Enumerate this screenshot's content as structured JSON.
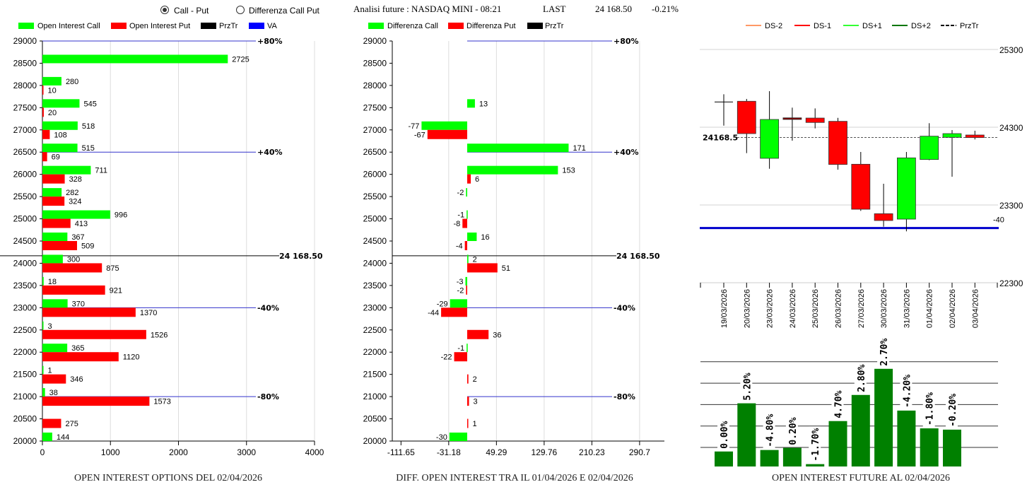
{
  "header": {
    "radio_options": [
      {
        "label": "Call - Put",
        "selected": true
      },
      {
        "label": "Differenza Call Put",
        "selected": false
      }
    ],
    "analysis_label": "Analisi future : NASDAQ MINI - 08:21",
    "last_label": "LAST",
    "last_price": "24 168.50",
    "last_change": "-0.21%"
  },
  "colors": {
    "call": "#00ff00",
    "put": "#ff0000",
    "przTr": "#000000",
    "va": "#0000ff",
    "future_bar": "#008000",
    "ds_minus2": "#ff9966",
    "ds_minus1": "#ff0000",
    "ds_plus1": "#33ff33",
    "ds_plus2": "#007700"
  },
  "chart_data": [
    {
      "type": "bar",
      "orientation": "horizontal",
      "title": "OPEN INTEREST OPTIONS DEL 02/04/2026",
      "legend": [
        "Open Interest Call",
        "Open Interest Put",
        "PrzTr",
        "VA"
      ],
      "legend_placement": "top",
      "strikes": [
        29000,
        28500,
        28000,
        27500,
        27000,
        26500,
        26000,
        25500,
        25000,
        24500,
        24000,
        23500,
        23000,
        22500,
        22000,
        21500,
        21000,
        20500,
        20000
      ],
      "series": [
        {
          "name": "Open Interest Call",
          "values": [
            null,
            2725,
            280,
            545,
            518,
            515,
            711,
            282,
            996,
            367,
            300,
            18,
            370,
            3,
            365,
            1,
            38,
            null,
            144
          ]
        },
        {
          "name": "Open Interest Put",
          "values": [
            null,
            null,
            10,
            20,
            108,
            69,
            328,
            324,
            413,
            509,
            875,
            921,
            1370,
            1526,
            1120,
            346,
            1573,
            275,
            null
          ]
        }
      ],
      "xlim": [
        0,
        4000
      ],
      "xticks": [
        "0",
        "1000",
        "2000",
        "3000",
        "4000"
      ],
      "reference_lines": [
        {
          "price": 29000,
          "label": "+80%"
        },
        {
          "price": 26500,
          "label": "+40%"
        },
        {
          "price": 23000,
          "label": "-40%"
        },
        {
          "price": 21000,
          "label": "-80%"
        }
      ],
      "price_line": {
        "price": 24168.5,
        "label": "24 168.50"
      }
    },
    {
      "type": "bar",
      "orientation": "horizontal",
      "title": "DIFF. OPEN INTEREST TRA IL 01/04/2026 E 02/04/2026",
      "legend": [
        "Differenza Call",
        "Differenza Put",
        "PrzTr"
      ],
      "legend_placement": "top",
      "strikes": [
        29000,
        28500,
        28000,
        27500,
        27000,
        26500,
        26000,
        25500,
        25000,
        24500,
        24000,
        23500,
        23000,
        22500,
        22000,
        21500,
        21000,
        20500,
        20000
      ],
      "series": [
        {
          "name": "Differenza Call",
          "values": [
            null,
            null,
            null,
            13,
            -77,
            171,
            153,
            -2,
            -1,
            16,
            2,
            -3,
            -29,
            null,
            -1,
            null,
            null,
            null,
            -30
          ]
        },
        {
          "name": "Differenza Put",
          "values": [
            null,
            null,
            null,
            null,
            -67,
            null,
            6,
            null,
            -8,
            -4,
            51,
            -2,
            -44,
            36,
            -22,
            2,
            3,
            1,
            null
          ]
        }
      ],
      "xlim": [
        -111.65,
        290.7
      ],
      "xticks": [
        "-111.65",
        "-31.18",
        "49.29",
        "129.76",
        "210.23",
        "290.7"
      ],
      "reference_lines": [
        {
          "price": 29000,
          "label": "+80%"
        },
        {
          "price": 26500,
          "label": "+40%"
        },
        {
          "price": 23000,
          "label": "-40%"
        },
        {
          "price": 21000,
          "label": "-80%"
        }
      ],
      "price_line": {
        "price": 24168.5,
        "label": "24 168.50"
      }
    },
    {
      "type": "candlestick",
      "legend": [
        "DS-2",
        "DS-1",
        "DS+1",
        "DS+2",
        "PrzTr"
      ],
      "legend_placement": "top",
      "dates": [
        "19/03/2026",
        "20/03/2026",
        "23/03/2026",
        "24/03/2026",
        "25/03/2026",
        "26/03/2026",
        "27/03/2026",
        "30/03/2026",
        "31/03/2026",
        "01/04/2026",
        "02/04/2026",
        "03/04/2026"
      ],
      "ohlc": [
        [
          24625,
          24724,
          24321,
          24625
        ],
        [
          24634,
          24664,
          23967,
          24218
        ],
        [
          23900,
          24764,
          23766,
          24400
        ],
        [
          24421,
          24552,
          24127,
          24400
        ],
        [
          24418,
          24542,
          24285,
          24361
        ],
        [
          24376,
          24421,
          23755,
          23821
        ],
        [
          23824,
          23982,
          23224,
          23245
        ],
        [
          23188,
          23573,
          23021,
          23100
        ],
        [
          23118,
          23982,
          22961,
          23906
        ],
        [
          23885,
          24352,
          23876,
          24185
        ],
        [
          24170,
          24264,
          23664,
          24218
        ],
        [
          24200,
          24255,
          24143,
          24167
        ]
      ],
      "ylim": [
        22300,
        25300
      ],
      "yticks": [
        "25300",
        "24300",
        "23300",
        "22300"
      ],
      "przTr": {
        "value": 24168.5,
        "label": "24168.5"
      },
      "va_line": {
        "value": 23003,
        "label": "-40"
      }
    },
    {
      "type": "bar",
      "title": "OPEN INTEREST FUTURE AL 02/04/2026",
      "values_relative": [
        0.81,
        3.06,
        0.88,
        0.98,
        0.22,
        2.23,
        3.45,
        4.67,
        2.72,
        1.89,
        1.83
      ],
      "labels": [
        "0.00%",
        "5.20%",
        "-4.80%",
        "0.20%",
        "-1.70%",
        "4.70%",
        "2.80%",
        "2.70%",
        "-4.20%",
        "-1.80%",
        "-0.20%"
      ],
      "ylim": [
        0.11,
        5.0
      ],
      "grid": true
    }
  ]
}
